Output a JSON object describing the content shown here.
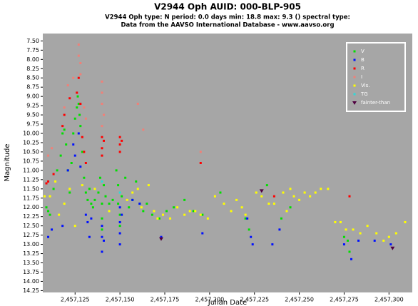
{
  "chart_data": {
    "type": "scatter",
    "title": "V2944 Oph   AUID: 000-BLP-905",
    "subtitle": [
      "V2944 Oph  type: N  period: 0.0 days  min: 18.8  max: 9.3 ()  spectral type:",
      "Data from the AAVSO International Database - www.aavso.org"
    ],
    "x_label": "Julian Date",
    "y_label": "Magnitude",
    "xlim": [
      2457107,
      2457313
    ],
    "ylim": [
      14.3,
      7.3
    ],
    "xticks": [
      {
        "value": 2457125,
        "label": "2,457,125"
      },
      {
        "value": 2457150,
        "label": "2,457,150"
      },
      {
        "value": 2457175,
        "label": "2,457,175"
      },
      {
        "value": 2457200,
        "label": "2,457,200"
      },
      {
        "value": 2457225,
        "label": "2,457,225"
      },
      {
        "value": 2457250,
        "label": "2,457,250"
      },
      {
        "value": 2457275,
        "label": "2,457,275"
      },
      {
        "value": 2457300,
        "label": "2,457,300"
      }
    ],
    "yticks": [
      {
        "value": 7.5,
        "label": "7.50"
      },
      7.75,
      {
        "value": 8,
        "label": "8.00"
      },
      8.25,
      {
        "value": 8.5,
        "label": "8.50"
      },
      8.75,
      {
        "value": 9,
        "label": "9.00"
      },
      9.25,
      {
        "value": 9.5,
        "label": "9.50"
      },
      9.75,
      {
        "value": 10,
        "label": "10.00"
      },
      10.25,
      {
        "value": 10.5,
        "label": "10.50"
      },
      10.75,
      {
        "value": 11,
        "label": "11.00"
      },
      11.25,
      {
        "value": 11.5,
        "label": "11.50"
      },
      11.75,
      {
        "value": 12,
        "label": "12.00"
      },
      12.25,
      {
        "value": 12.5,
        "label": "12.50"
      },
      12.75,
      {
        "value": 13,
        "label": "13.00"
      },
      13.25,
      {
        "value": 13.5,
        "label": "13.50"
      },
      13.75,
      {
        "value": 14,
        "label": "14.00"
      },
      14.25
    ],
    "grid": false,
    "legend": "upper right",
    "series": [
      {
        "name": "V",
        "color": "#00e000",
        "marker": "square",
        "x": [
          2457109,
          2457110,
          2457111,
          2457113,
          2457115,
          2457117,
          2457118,
          2457119,
          2457120,
          2457121,
          2457122,
          2457123,
          2457124,
          2457125,
          2457126,
          2457126.5,
          2457127,
          2457127.5,
          2457128,
          2457129,
          2457130,
          2457131,
          2457132,
          2457133,
          2457134,
          2457135,
          2457136,
          2457138,
          2457139,
          2457140,
          2457140,
          2457140,
          2457141,
          2457142,
          2457144,
          2457146,
          2457148,
          2457149,
          2457149,
          2457150,
          2457150,
          2457151,
          2457153,
          2457155,
          2457157,
          2457159,
          2457161,
          2457163,
          2457165,
          2457168,
          2457172,
          2457176,
          2457180,
          2457186,
          2457191,
          2457196,
          2457206,
          2457220,
          2457222,
          2457232,
          2457240,
          2457245,
          2457275,
          2457277,
          2457278
        ],
        "values": [
          12.0,
          12.1,
          12.2,
          11.5,
          11.0,
          10.6,
          10.0,
          9.9,
          10.3,
          11.0,
          11.6,
          10.8,
          10.0,
          9.6,
          9.3,
          9.0,
          9.2,
          9.5,
          9.8,
          10.5,
          11.2,
          11.6,
          11.8,
          11.5,
          11.9,
          12.0,
          11.8,
          11.6,
          11.2,
          11.9,
          12.3,
          12.6,
          11.4,
          11.7,
          11.9,
          11.8,
          11.0,
          11.4,
          11.9,
          12.2,
          12.5,
          11.7,
          11.2,
          12.0,
          11.8,
          11.3,
          11.9,
          12.1,
          11.9,
          12.2,
          12.3,
          12.1,
          12.0,
          11.8,
          12.1,
          12.2,
          11.6,
          12.3,
          12.6,
          11.4,
          12.3,
          12.0,
          12.8,
          12.9,
          13.2
        ]
      },
      {
        "name": "B",
        "color": "#0010ff",
        "marker": "square",
        "x": [
          2457110,
          2457112,
          2457118,
          2457121,
          2457124,
          2457125,
          2457127,
          2457128,
          2457131,
          2457132,
          2457133,
          2457134,
          2457140,
          2457140,
          2457140,
          2457141,
          2457150,
          2457150,
          2457150,
          2457150,
          2457151,
          2457157,
          2457161,
          2457173,
          2457196,
          2457221,
          2457223,
          2457224,
          2457235,
          2457239,
          2457275,
          2457279,
          2457283,
          2457292,
          2457301
        ],
        "values": [
          12.8,
          12.6,
          12.5,
          11.0,
          10.3,
          10.6,
          10.0,
          10.9,
          12.2,
          12.4,
          12.8,
          12.3,
          12.5,
          12.8,
          13.2,
          12.9,
          12.0,
          12.4,
          12.7,
          13.0,
          12.2,
          11.8,
          11.9,
          12.8,
          12.7,
          12.3,
          12.8,
          13.0,
          13.0,
          12.6,
          13.0,
          13.4,
          12.9,
          12.9,
          13.0
        ]
      },
      {
        "name": "R",
        "color": "#ff0000",
        "marker": "square",
        "x": [
          2457109,
          2457110,
          2457113,
          2457118,
          2457119,
          2457122,
          2457126,
          2457127,
          2457128,
          2457129,
          2457130,
          2457131,
          2457140,
          2457140,
          2457140,
          2457141,
          2457150,
          2457150,
          2457150,
          2457151,
          2457195,
          2457236,
          2457278
        ],
        "values": [
          11.35,
          11.3,
          11.1,
          9.8,
          9.5,
          9.05,
          8.9,
          8.5,
          9.2,
          10.1,
          10.5,
          10.8,
          10.1,
          10.4,
          10.6,
          10.2,
          10.1,
          10.3,
          10.5,
          10.2,
          10.8,
          11.7,
          11.7
        ]
      },
      {
        "name": "I",
        "color": "#f08078",
        "marker": "square",
        "x": [
          2457110,
          2457112,
          2457119,
          2457121,
          2457124,
          2457127,
          2457127,
          2457128,
          2457128,
          2457130,
          2457131,
          2457140,
          2457140,
          2457140,
          2457141,
          2457140,
          2457160,
          2457163,
          2457195
        ],
        "values": [
          10.6,
          10.4,
          9.3,
          8.7,
          8.5,
          7.9,
          7.6,
          8.1,
          8.4,
          9.3,
          9.6,
          8.6,
          8.9,
          9.2,
          9.5,
          9.8,
          9.2,
          9.9,
          10.5
        ]
      },
      {
        "name": "Vis.",
        "color": "#ffff00",
        "marker": "square",
        "x": [
          2457108,
          2457111,
          2457114,
          2457116,
          2457119,
          2457122,
          2457125,
          2457129,
          2457136,
          2457144,
          2457154,
          2457157,
          2457160,
          2457162,
          2457166,
          2457169,
          2457171,
          2457174,
          2457178,
          2457182,
          2457186,
          2457189,
          2457192,
          2457195,
          2457199,
          2457203,
          2457208,
          2457212,
          2457215,
          2457218,
          2457220,
          2457226,
          2457229,
          2457233,
          2457236,
          2457241,
          2457243,
          2457245,
          2457247,
          2457250,
          2457253,
          2457256,
          2457259,
          2457262,
          2457266,
          2457270,
          2457273,
          2457276,
          2457280,
          2457284,
          2457288,
          2457293,
          2457297,
          2457300,
          2457304,
          2457309
        ],
        "values": [
          11.7,
          11.7,
          11.3,
          12.2,
          11.9,
          11.5,
          12.5,
          11.4,
          11.5,
          12.1,
          11.8,
          11.6,
          11.5,
          12.0,
          11.4,
          12.1,
          12.3,
          12.2,
          12.3,
          12.0,
          12.2,
          12.1,
          12.1,
          12.2,
          12.3,
          11.7,
          11.9,
          12.1,
          11.8,
          12.0,
          12.2,
          11.6,
          11.7,
          11.9,
          11.9,
          11.6,
          12.1,
          11.5,
          11.7,
          11.8,
          11.6,
          11.7,
          11.6,
          11.5,
          11.5,
          12.4,
          12.4,
          12.6,
          12.6,
          12.7,
          12.5,
          12.7,
          12.9,
          12.8,
          12.7,
          12.4
        ]
      },
      {
        "name": "TG",
        "color": "#30d8d8",
        "marker": "square",
        "x": [
          2457140,
          2457150
        ],
        "values": [
          11.3,
          11.6
        ]
      },
      {
        "name": "fainter-than",
        "color": "#500040",
        "marker": "triangle",
        "x": [
          2457173,
          2457229,
          2457302
        ],
        "values": [
          12.85,
          11.55,
          13.1
        ]
      }
    ]
  }
}
